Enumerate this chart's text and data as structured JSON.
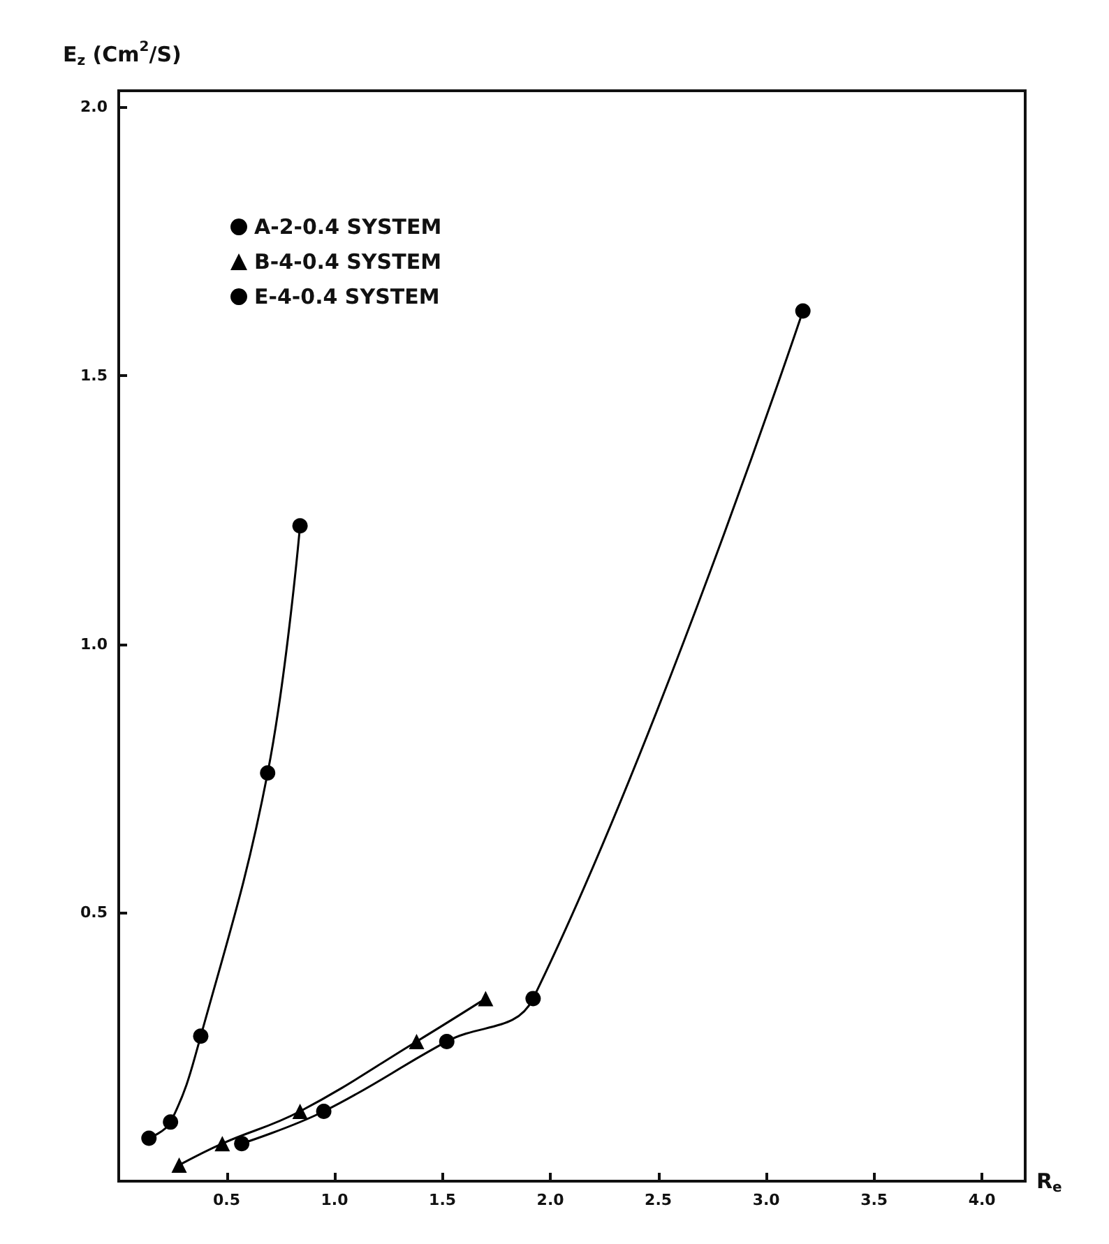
{
  "chart_data": {
    "type": "line",
    "ylabel": "E$_{z}$ (Cm$^{2}$/S)",
    "xlabel": "R$_{e}$",
    "series": [
      {
        "name": "A-2-0.4 SYSTEM",
        "color": "#000000",
        "marker": "circle",
        "x": [
          0.57,
          0.95,
          1.52,
          1.92,
          3.17
        ],
        "values": [
          0.07,
          0.13,
          0.26,
          0.34,
          1.62
        ]
      },
      {
        "name": "B-4-0.4 SYSTEM",
        "color": "#000000",
        "marker": "triangle",
        "x": [
          0.28,
          0.48,
          0.84,
          1.38,
          1.7
        ],
        "values": [
          0.03,
          0.07,
          0.13,
          0.26,
          0.34
        ]
      },
      {
        "name": "E-4-0.4 SYSTEM",
        "color": "#000000",
        "marker": "circle",
        "x": [
          0.14,
          0.24,
          0.38,
          0.69,
          0.84
        ],
        "values": [
          0.08,
          0.11,
          0.27,
          0.76,
          1.22
        ]
      }
    ],
    "xlim": [
      0,
      4.2
    ],
    "ylim": [
      0,
      2.03
    ],
    "xticks": [
      0.5,
      {
        "value": 1,
        "label": "1.0"
      },
      1.5,
      {
        "value": 2,
        "label": "2.0"
      },
      2.5,
      {
        "value": 3,
        "label": "3.0"
      },
      3.5,
      {
        "value": 4,
        "label": "4.0"
      }
    ],
    "yticks": [
      0.5,
      {
        "value": 1,
        "label": "1.0"
      },
      1.5,
      {
        "value": 2,
        "label": "2.0"
      }
    ],
    "grid": false,
    "legend": "top left",
    "line_style": "solid"
  }
}
